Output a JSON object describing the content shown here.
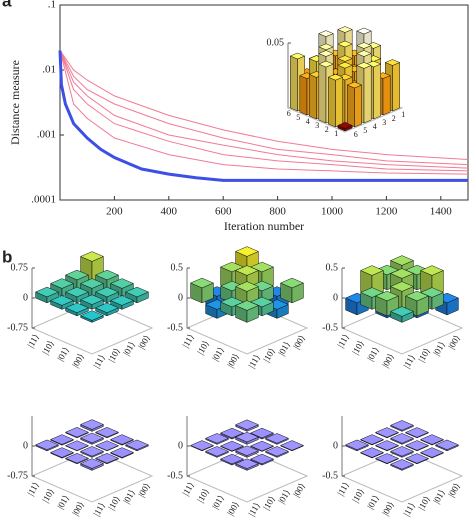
{
  "panel_labels": [
    "a",
    "b"
  ],
  "chart_data": [
    {
      "type": "line",
      "xlabel": "Iteration number",
      "ylabel": "Distance measure",
      "log_y": true,
      "xlim": [
        0,
        1500
      ],
      "ylim": [
        0.0001,
        0.1
      ],
      "xticks": [
        200,
        400,
        600,
        800,
        1000,
        1200,
        1400
      ],
      "yticks": [
        {
          "value": 0.0001,
          "label": ".0001"
        },
        {
          "value": 0.001,
          "label": ".001"
        },
        {
          "value": 0.01,
          "label": ".01"
        },
        {
          "value": 0.1,
          "label": ".1"
        }
      ],
      "series": [
        {
          "color": "#f27a95",
          "x": [
            0,
            50,
            100,
            200,
            400,
            600,
            800,
            1000,
            1200,
            1500
          ],
          "values": [
            0.02,
            0.008,
            0.005,
            0.003,
            0.0015,
            0.0009,
            0.0006,
            0.0005,
            0.0004,
            0.00035
          ]
        },
        {
          "color": "#f27a95",
          "x": [
            0,
            50,
            100,
            200,
            400,
            600,
            800,
            1000,
            1200,
            1500
          ],
          "values": [
            0.02,
            0.005,
            0.003,
            0.0015,
            0.0008,
            0.0005,
            0.0004,
            0.00035,
            0.0003,
            0.00028
          ]
        },
        {
          "color": "#f27a95",
          "x": [
            0,
            50,
            100,
            200,
            400,
            600,
            800,
            1000,
            1200,
            1500
          ],
          "values": [
            0.02,
            0.003,
            0.0018,
            0.0009,
            0.0005,
            0.00035,
            0.0003,
            0.00028,
            0.00026,
            0.00025
          ]
        },
        {
          "color": "#f27a95",
          "x": [
            0,
            50,
            100,
            200,
            400,
            600,
            800,
            1000,
            1200,
            1500
          ],
          "values": [
            0.02,
            0.01,
            0.007,
            0.004,
            0.002,
            0.0012,
            0.0008,
            0.0006,
            0.0005,
            0.00042
          ]
        },
        {
          "color": "#f27a95",
          "x": [
            0,
            50,
            100,
            200,
            400,
            600,
            800,
            1000,
            1200,
            1500
          ],
          "values": [
            0.02,
            0.0065,
            0.004,
            0.002,
            0.001,
            0.0007,
            0.0005,
            0.0004,
            0.00035,
            0.00031
          ]
        },
        {
          "color": "#3d4fe6",
          "x": [
            0,
            5,
            20,
            50,
            100,
            150,
            200,
            300,
            400,
            500,
            600,
            800,
            1000,
            1200,
            1500
          ],
          "values": [
            0.02,
            0.006,
            0.003,
            0.0015,
            0.0009,
            0.0006,
            0.00045,
            0.0003,
            0.00025,
            0.00022,
            0.0002,
            0.0002,
            0.0002,
            0.0002,
            0.0002
          ]
        }
      ]
    },
    {
      "type": "bar3d",
      "zlim": [
        0,
        0.05
      ],
      "zticks": [
        0.05
      ],
      "colormap": [
        "#7a0000",
        "#e02000",
        "#ff8a00",
        "#ffe040",
        "#fffbe0"
      ],
      "row_labels": [
        "1",
        "2",
        "3",
        "4",
        "5",
        "6"
      ],
      "col_labels": [
        "1",
        "2",
        "3",
        "4",
        "5",
        "6"
      ],
      "matrix": [
        [
          0.045,
          0.03,
          0.05,
          0.042,
          0.02,
          0.035
        ],
        [
          0.03,
          0.04,
          0.025,
          0.045,
          0.038,
          0.028
        ],
        [
          0.048,
          0.022,
          0.035,
          0.03,
          0.045,
          0.04
        ],
        [
          0.032,
          0.044,
          0.028,
          0.036,
          0.025,
          0.042
        ],
        [
          0.025,
          0.038,
          0.045,
          0.02,
          0.033,
          0.03
        ],
        [
          0.04,
          0.028,
          0.032,
          0.043,
          0.036,
          0.002
        ]
      ]
    },
    {
      "type": "bar3d",
      "zlim": [
        -0.75,
        0.75
      ],
      "zticks": [
        0.75,
        0,
        -0.75
      ],
      "colormap": [
        "#352a87",
        "#1f6fd8",
        "#12b0c8",
        "#7cc86b",
        "#f9e018"
      ],
      "row_labels": [
        "|00⟩",
        "|01⟩",
        "|10⟩",
        "|11⟩"
      ],
      "col_labels": [
        "|00⟩",
        "|01⟩",
        "|10⟩",
        "|11⟩"
      ],
      "matrix": [
        [
          0.55,
          0.25,
          0.2,
          0.15
        ],
        [
          0.25,
          0.2,
          0.15,
          0.1
        ],
        [
          0.2,
          0.15,
          0.12,
          0.08
        ],
        [
          0.15,
          0.1,
          0.08,
          0.05
        ]
      ]
    },
    {
      "type": "bar3d",
      "zlim": [
        -0.5,
        0.5
      ],
      "zticks": [
        0.5,
        0,
        -0.5
      ],
      "colormap": [
        "#352a87",
        "#1f6fd8",
        "#12b0c8",
        "#7cc86b",
        "#f9e018"
      ],
      "row_labels": [
        "|00⟩",
        "|01⟩",
        "|10⟩",
        "|11⟩"
      ],
      "col_labels": [
        "|00⟩",
        "|01⟩",
        "|10⟩",
        "|11⟩"
      ],
      "matrix": [
        [
          0.45,
          0.3,
          -0.2,
          0.25
        ],
        [
          0.3,
          0.35,
          0.2,
          -0.15
        ],
        [
          -0.2,
          0.2,
          0.3,
          0.15
        ],
        [
          0.25,
          -0.15,
          0.15,
          0.2
        ]
      ]
    },
    {
      "type": "bar3d",
      "zlim": [
        -0.5,
        0.5
      ],
      "zticks": [
        0.5,
        0,
        -0.5
      ],
      "colormap": [
        "#352a87",
        "#1f6fd8",
        "#12b0c8",
        "#7cc86b",
        "#f9e018"
      ],
      "row_labels": [
        "|00⟩",
        "|01⟩",
        "|10⟩",
        "|11⟩"
      ],
      "col_labels": [
        "|00⟩",
        "|01⟩",
        "|10⟩",
        "|11⟩"
      ],
      "matrix": [
        [
          0.3,
          0.25,
          0.35,
          -0.2
        ],
        [
          0.25,
          0.3,
          -0.25,
          0.2
        ],
        [
          0.35,
          -0.25,
          0.3,
          0.25
        ],
        [
          -0.2,
          0.2,
          0.25,
          0.1
        ]
      ]
    },
    {
      "type": "bar3d",
      "zlim": [
        -0.75,
        0.75
      ],
      "zticks": [
        0,
        -0.75
      ],
      "colormap": [
        "#3a2fc8",
        "#8f86e8",
        "#c4bef5"
      ],
      "row_labels": [
        "|00⟩",
        "|01⟩",
        "|10⟩",
        "|11⟩"
      ],
      "col_labels": [
        "|00⟩",
        "|01⟩",
        "|10⟩",
        "|11⟩"
      ],
      "matrix": [
        [
          0.05,
          0.02,
          -0.02,
          0.03
        ],
        [
          0.02,
          0.04,
          0.01,
          -0.02
        ],
        [
          -0.02,
          0.01,
          0.03,
          0.02
        ],
        [
          0.03,
          -0.02,
          0.02,
          0.05
        ]
      ]
    },
    {
      "type": "bar3d",
      "zlim": [
        -0.5,
        0.5
      ],
      "zticks": [
        0,
        -0.5
      ],
      "colormap": [
        "#3a2fc8",
        "#8f86e8",
        "#c4bef5"
      ],
      "row_labels": [
        "|00⟩",
        "|01⟩",
        "|10⟩",
        "|11⟩"
      ],
      "col_labels": [
        "|00⟩",
        "|01⟩",
        "|10⟩",
        "|11⟩"
      ],
      "matrix": [
        [
          0.03,
          -0.02,
          0.02,
          0.01
        ],
        [
          -0.02,
          0.04,
          -0.01,
          0.02
        ],
        [
          0.02,
          -0.01,
          0.03,
          -0.02
        ],
        [
          0.01,
          0.02,
          -0.02,
          0.03
        ]
      ]
    },
    {
      "type": "bar3d",
      "zlim": [
        -0.5,
        0.5
      ],
      "zticks": [
        0,
        -0.5
      ],
      "colormap": [
        "#3a2fc8",
        "#8f86e8",
        "#c4bef5"
      ],
      "row_labels": [
        "|00⟩",
        "|01⟩",
        "|10⟩",
        "|11⟩"
      ],
      "col_labels": [
        "|00⟩",
        "|01⟩",
        "|10⟩",
        "|11⟩"
      ],
      "matrix": [
        [
          0.02,
          0.01,
          -0.01,
          0.02
        ],
        [
          0.01,
          0.02,
          0.01,
          -0.01
        ],
        [
          -0.01,
          0.01,
          0.02,
          0.01
        ],
        [
          0.02,
          -0.01,
          0.01,
          0.02
        ]
      ]
    }
  ]
}
